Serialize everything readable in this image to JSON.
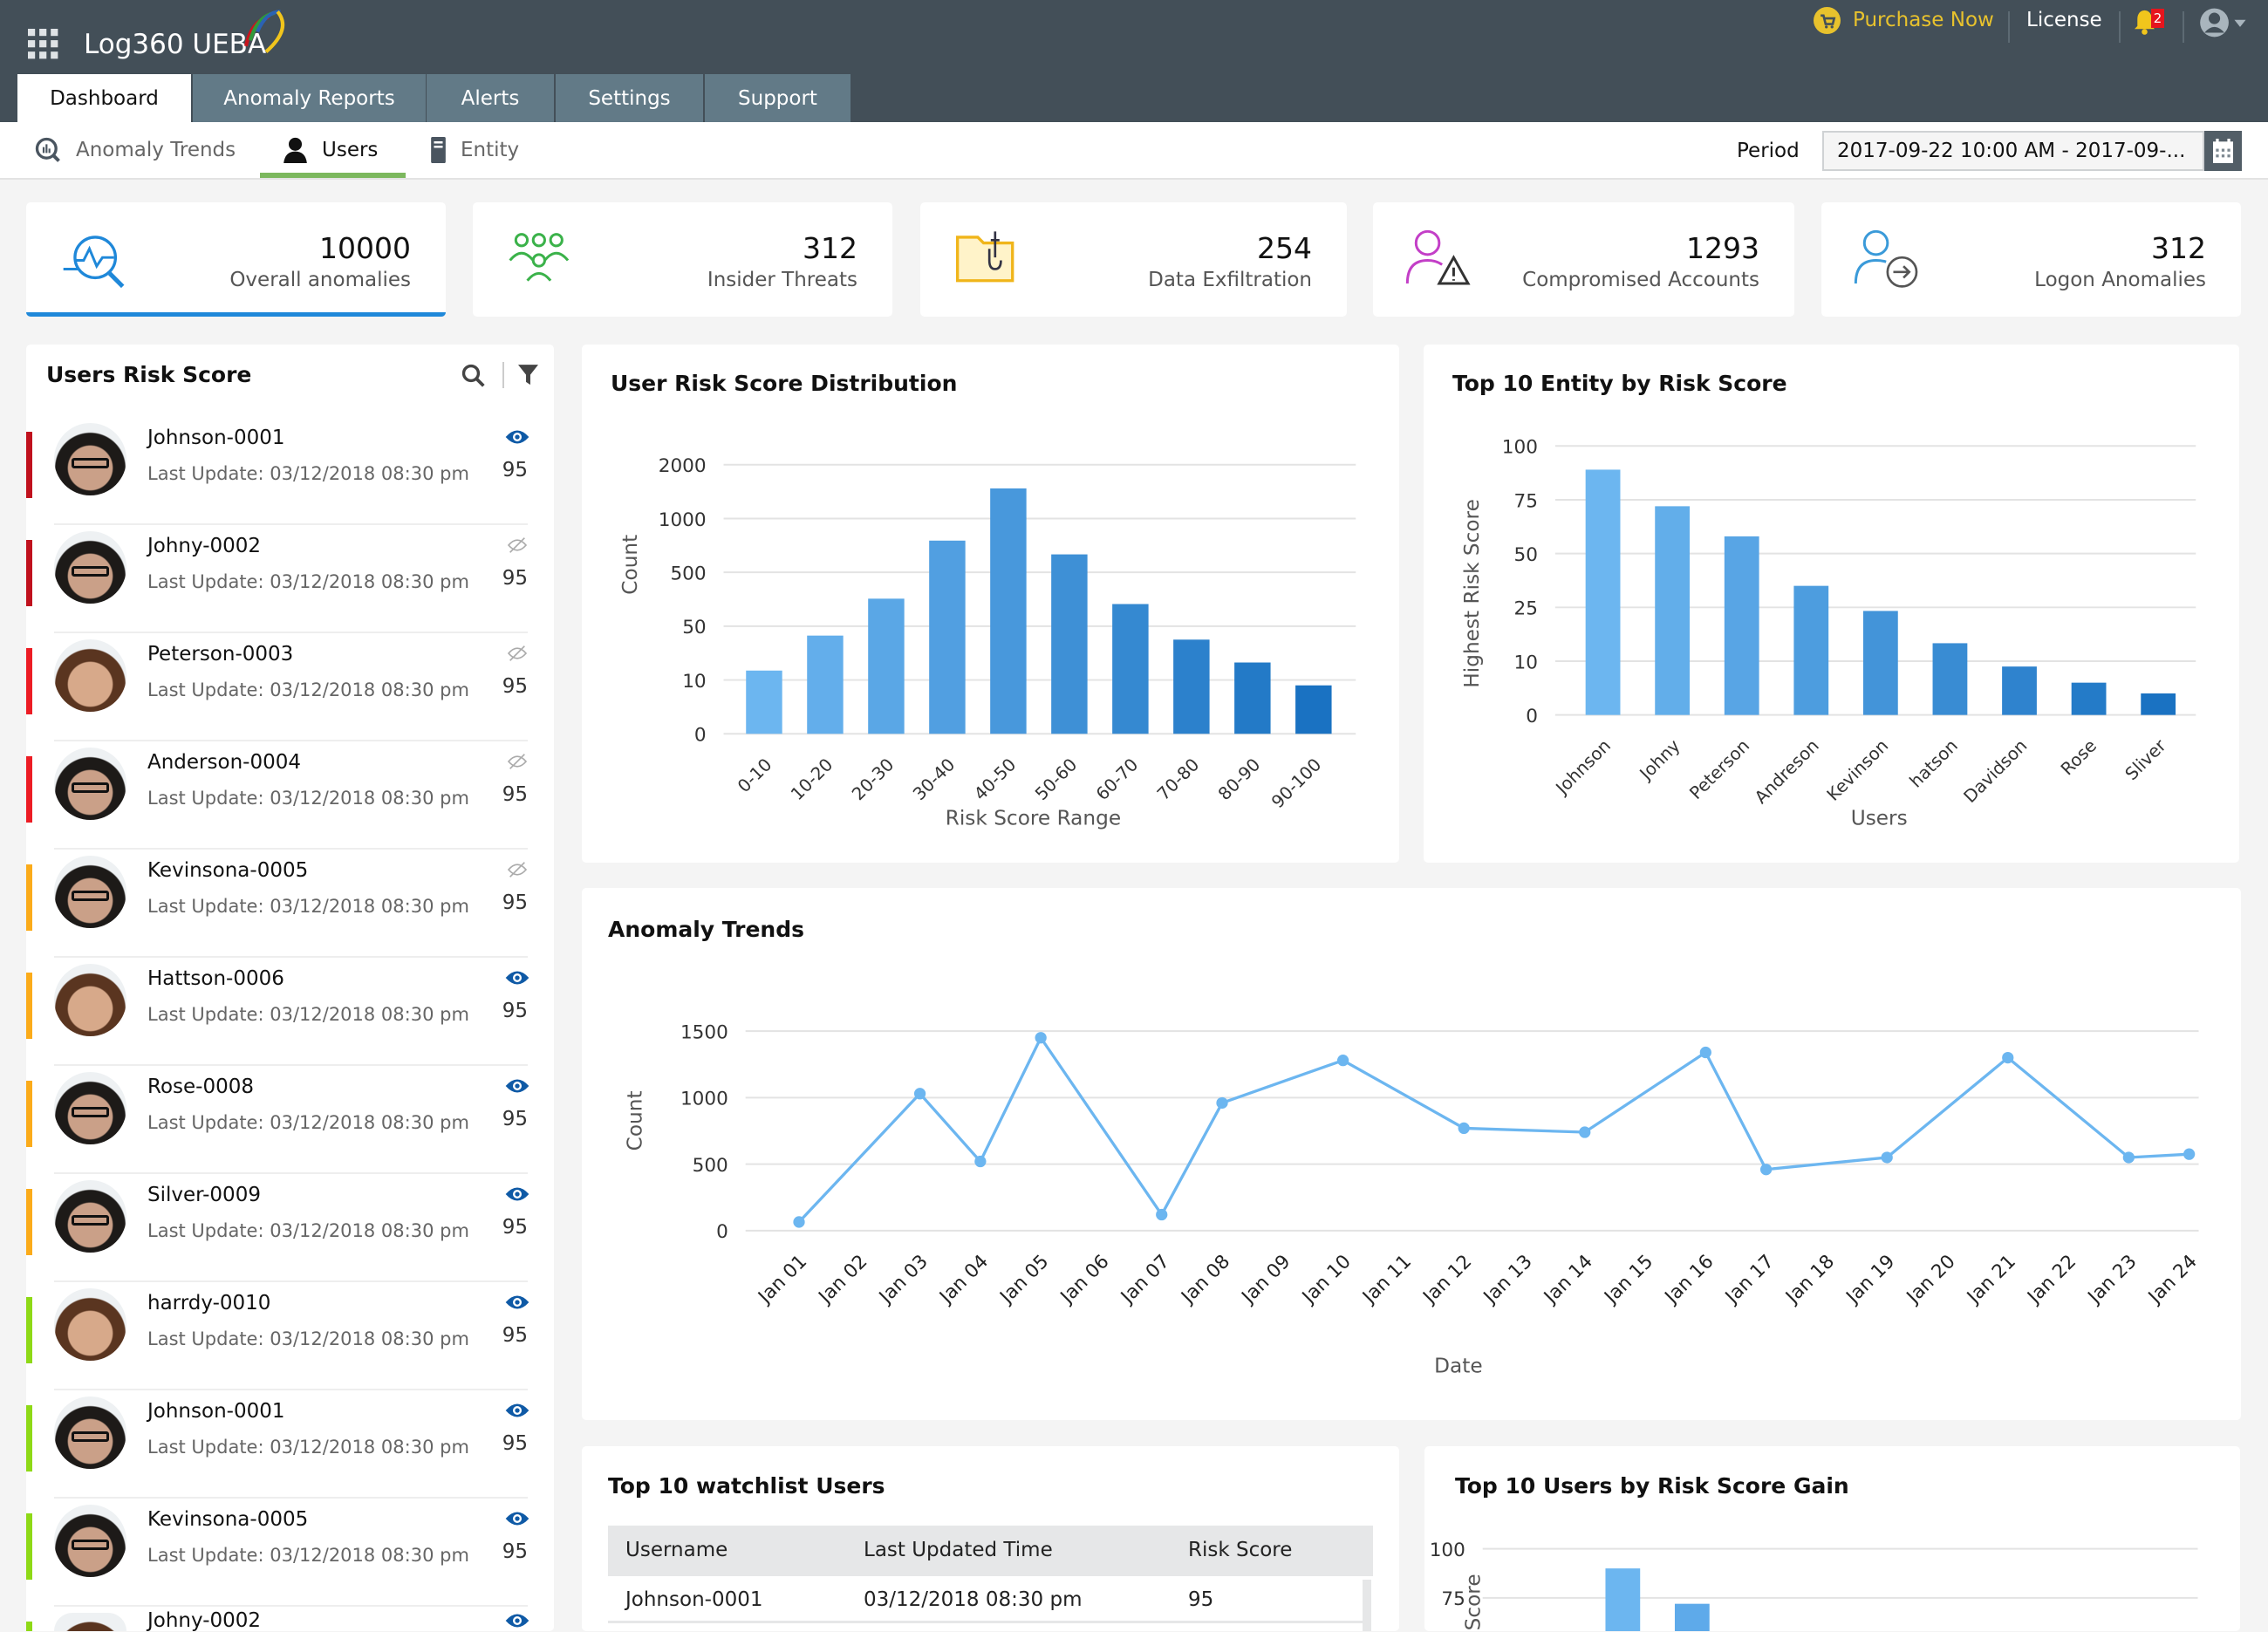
{
  "app": {
    "title": "Log360 UEBA",
    "icons": [
      "apps-grid-icon",
      "logo-arc-icon"
    ]
  },
  "topbar": {
    "purchase": "Purchase Now",
    "license": "License",
    "notifications": "2",
    "colors": {
      "purchase": "#e8c22d",
      "header": "#434f58",
      "tab": "#627a87"
    }
  },
  "tabs": [
    {
      "label": "Dashboard",
      "active": true
    },
    {
      "label": "Anomaly Reports"
    },
    {
      "label": "Alerts"
    },
    {
      "label": "Settings"
    },
    {
      "label": "Support"
    }
  ],
  "subnav": [
    {
      "label": "Anomaly Trends",
      "icon": "anomaly-search-icon"
    },
    {
      "label": "Users",
      "icon": "user-icon",
      "active": true
    },
    {
      "label": "Entity",
      "icon": "server-icon"
    }
  ],
  "period": {
    "label": "Period",
    "value": "2017-09-22 10:00 AM - 2017-09-..."
  },
  "kpis": [
    {
      "value": "10000",
      "label": "Overall anomalies",
      "icon": "anomaly-search-icon"
    },
    {
      "value": "312",
      "label": "Insider Threats",
      "icon": "group-icon"
    },
    {
      "value": "254",
      "label": "Data Exfiltration",
      "icon": "folder-usb-icon"
    },
    {
      "value": "1293",
      "label": "Compromised Accounts",
      "icon": "user-warning-icon"
    },
    {
      "value": "312",
      "label": "Logon Anomalies",
      "icon": "user-logon-icon"
    }
  ],
  "users_panel": {
    "title": "Users Risk Score",
    "items": [
      {
        "name": "Johnson-0001",
        "update": "Last Update: 03/12/2018 08:30 pm",
        "score": "95",
        "level": "#c0111d",
        "watched": true
      },
      {
        "name": "Johny-0002",
        "update": "Last Update: 03/12/2018 08:30 pm",
        "score": "95",
        "level": "#c0111d",
        "watched": false
      },
      {
        "name": "Peterson-0003",
        "update": "Last Update: 03/12/2018 08:30 pm",
        "score": "95",
        "level": "#ec1c24",
        "watched": false
      },
      {
        "name": "Anderson-0004",
        "update": "Last Update: 03/12/2018 08:30 pm",
        "score": "95",
        "level": "#ec1c24",
        "watched": false
      },
      {
        "name": "Kevinsona-0005",
        "update": "Last Update: 03/12/2018 08:30 pm",
        "score": "95",
        "level": "#fbab1a",
        "watched": false
      },
      {
        "name": "Hattson-0006",
        "update": "Last Update: 03/12/2018 08:30 pm",
        "score": "95",
        "level": "#fbab1a",
        "watched": true
      },
      {
        "name": "Rose-0008",
        "update": "Last Update: 03/12/2018 08:30 pm",
        "score": "95",
        "level": "#fbab1a",
        "watched": true
      },
      {
        "name": "Silver-0009",
        "update": "Last Update: 03/12/2018 08:30 pm",
        "score": "95",
        "level": "#fbab1a",
        "watched": true
      },
      {
        "name": "harrdy-0010",
        "update": "Last Update: 03/12/2018 08:30 pm",
        "score": "95",
        "level": "#8ed916",
        "watched": true
      },
      {
        "name": "Johnson-0001",
        "update": "Last Update: 03/12/2018 08:30 pm",
        "score": "95",
        "level": "#8ed916",
        "watched": true
      },
      {
        "name": "Kevinsona-0005",
        "update": "Last Update: 03/12/2018 08:30 pm",
        "score": "95",
        "level": "#8ed916",
        "watched": true
      },
      {
        "name": "Johny-0002",
        "update": "",
        "score": "",
        "level": "#8ed916",
        "watched": true
      }
    ]
  },
  "chart_data": [
    {
      "id": "distribution",
      "type": "bar",
      "title": "User Risk Score Distribution",
      "xlabel": "Risk Score Range",
      "ylabel": "Count",
      "categories": [
        "0-10",
        "10-20",
        "20-30",
        "30-40",
        "40-50",
        "50-60",
        "60-70",
        "70-80",
        "80-90",
        "90-100"
      ],
      "values": [
        17,
        43,
        280,
        795,
        1560,
        667,
        235,
        40,
        23,
        9
      ],
      "yticks": [
        0,
        10,
        50,
        500,
        1000,
        2000
      ],
      "grid": true,
      "colors": [
        "#6cb6f0",
        "#1a72c2"
      ]
    },
    {
      "id": "entity",
      "type": "bar",
      "title": "Top 10 Entity by Risk Score",
      "xlabel": "Users",
      "ylabel": "Highest Risk Score",
      "categories": [
        "Johnson",
        "Johny",
        "Peterson",
        "Andreson",
        "Kevinson",
        "hatson",
        "Davidson",
        "Rose",
        "Sliver"
      ],
      "values": [
        89,
        72,
        58,
        35,
        24,
        15,
        9,
        6,
        4
      ],
      "yticks": [
        0,
        10,
        25,
        50,
        75,
        100
      ],
      "grid": true,
      "colors": [
        "#6cb6f0",
        "#1a72c2"
      ]
    },
    {
      "id": "trends",
      "type": "line",
      "title": "Anomaly Trends",
      "xlabel": "Date",
      "ylabel": "Count",
      "categories": [
        "Jan 01",
        "Jan 02",
        "Jan 03",
        "Jan 04",
        "Jan 05",
        "Jan 06",
        "Jan 07",
        "Jan 08",
        "Jan 09",
        "Jan 10",
        "Jan 11",
        "Jan 12",
        "Jan 13",
        "Jan 14",
        "Jan 15",
        "Jan 16",
        "Jan 17",
        "Jan 18",
        "Jan 19",
        "Jan 20",
        "Jan 21",
        "Jan 22",
        "Jan 23",
        "Jan 24"
      ],
      "points": [
        [
          "Jan 01",
          65
        ],
        [
          "Jan 03",
          1030
        ],
        [
          "Jan 04",
          520
        ],
        [
          "Jan 05",
          1450
        ],
        [
          "Jan 07",
          120
        ],
        [
          "Jan 08",
          960
        ],
        [
          "Jan 10",
          1280
        ],
        [
          "Jan 12",
          770
        ],
        [
          "Jan 14",
          740
        ],
        [
          "Jan 16",
          1340
        ],
        [
          "Jan 17",
          460
        ],
        [
          "Jan 19",
          550
        ],
        [
          "Jan 21",
          1300
        ],
        [
          "Jan 23",
          550
        ],
        [
          "Jan 24",
          575
        ]
      ],
      "yticks": [
        0,
        500,
        1000,
        1500
      ],
      "ylim": [
        0,
        1500
      ],
      "grid": true,
      "color": "#6cb6f0"
    },
    {
      "id": "gain",
      "type": "bar",
      "title": "Top 10 Users by Risk Score Gain",
      "ylabel": "Score",
      "values": [
        90,
        72
      ],
      "yticks": [
        75,
        100
      ],
      "grid": true,
      "colors": [
        "#6cb6f0",
        "#5eaaea"
      ]
    }
  ],
  "watchlist": {
    "title": "Top 10 watchlist Users",
    "columns": [
      "Username",
      "Last Updated Time",
      "Risk Score"
    ],
    "rows": [
      [
        "Johnson-0001",
        "03/12/2018 08:30 pm",
        "95"
      ]
    ]
  }
}
